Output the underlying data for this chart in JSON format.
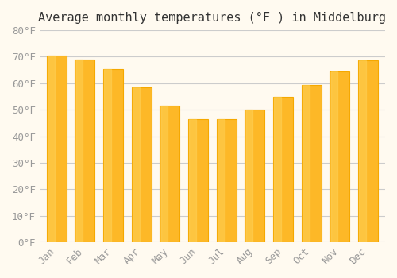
{
  "title": "Average monthly temperatures (°F ) in Middelburg",
  "months": [
    "Jan",
    "Feb",
    "Mar",
    "Apr",
    "May",
    "Jun",
    "Jul",
    "Aug",
    "Sep",
    "Oct",
    "Nov",
    "Dec"
  ],
  "values": [
    70.5,
    69.0,
    65.5,
    58.5,
    51.5,
    46.5,
    46.5,
    50.0,
    55.0,
    59.5,
    64.5,
    68.5
  ],
  "bar_color_face": "#FDB827",
  "bar_color_edge": "#F5A800",
  "background_color": "#FFFAF0",
  "grid_color": "#CCCCCC",
  "ylim": [
    0,
    80
  ],
  "yticks": [
    0,
    10,
    20,
    30,
    40,
    50,
    60,
    70,
    80
  ],
  "ytick_labels": [
    "0°F",
    "10°F",
    "20°F",
    "30°F",
    "40°F",
    "50°F",
    "60°F",
    "70°F",
    "80°F"
  ],
  "title_fontsize": 11,
  "tick_fontsize": 9,
  "tick_font_color": "#999999"
}
